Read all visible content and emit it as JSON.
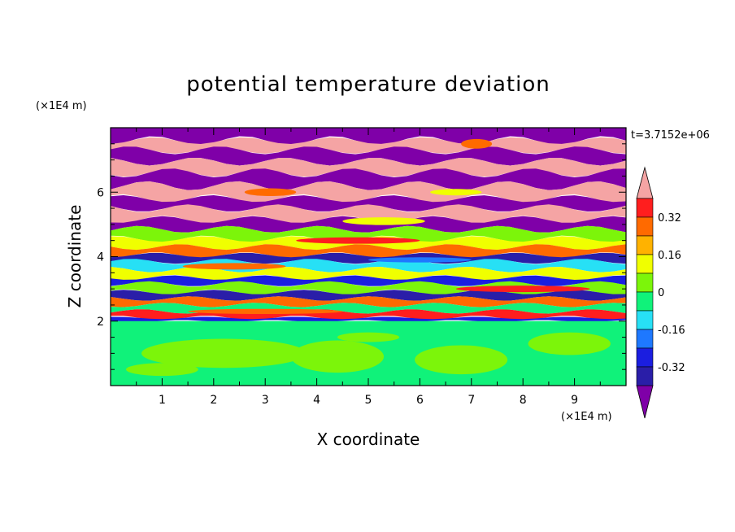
{
  "chart_data": {
    "type": "heatmap",
    "title": "potential temperature deviation",
    "xlabel": "X coordinate",
    "ylabel": "Z coordinate",
    "x_unit_label": "(×1E4 m)",
    "y_unit_label": "(×1E4 m)",
    "time_label": "t=3.7152e+06",
    "xlim": [
      0,
      10
    ],
    "ylim": [
      0,
      8
    ],
    "x_ticks": [
      "1",
      "2",
      "3",
      "4",
      "5",
      "6",
      "7",
      "8",
      "9"
    ],
    "y_ticks": [
      "2",
      "4",
      "6"
    ],
    "colorbar": {
      "levels": [
        -0.48,
        -0.4,
        -0.32,
        -0.24,
        -0.16,
        -0.08,
        0,
        0.08,
        0.16,
        0.24,
        0.32,
        0.4,
        0.48
      ],
      "colors": [
        "#7f00a8",
        "#2a1ea8",
        "#1b1ee0",
        "#1e78ff",
        "#27e0f5",
        "#10f27a",
        "#7cf50a",
        "#f0ff00",
        "#ffb200",
        "#ff6a00",
        "#ff1e1e",
        "#f5a4a4"
      ],
      "tick_labels": [
        "0.32",
        "0.16",
        "0",
        "-0.16",
        "-0.32"
      ],
      "tick_values": [
        0.32,
        0.16,
        0,
        -0.16,
        -0.32
      ]
    },
    "layers": [
      {
        "z_top": 8.0,
        "z_bottom": 7.6,
        "level": "#7f00a8"
      },
      {
        "z_top": 7.6,
        "z_bottom": 7.3,
        "level": "#f5a4a4"
      },
      {
        "z_top": 7.3,
        "z_bottom": 6.95,
        "level": "#7f00a8"
      },
      {
        "z_top": 6.95,
        "z_bottom": 6.6,
        "level": "#f5a4a4"
      },
      {
        "z_top": 6.6,
        "z_bottom": 6.2,
        "level": "#7f00a8"
      },
      {
        "z_top": 6.2,
        "z_bottom": 5.8,
        "level": "#f5a4a4"
      },
      {
        "z_top": 5.8,
        "z_bottom": 5.5,
        "level": "#7f00a8"
      },
      {
        "z_top": 5.5,
        "z_bottom": 5.15,
        "level": "#f5a4a4"
      },
      {
        "z_top": 5.15,
        "z_bottom": 4.85,
        "level": "#7f00a8"
      },
      {
        "z_top": 4.85,
        "z_bottom": 4.55,
        "level": "#7cf50a"
      },
      {
        "z_top": 4.55,
        "z_bottom": 4.3,
        "level": "#f0ff00"
      },
      {
        "z_top": 4.3,
        "z_bottom": 4.05,
        "level": "#ff6a00"
      },
      {
        "z_top": 4.05,
        "z_bottom": 3.85,
        "level": "#2a1ea8"
      },
      {
        "z_top": 3.85,
        "z_bottom": 3.6,
        "level": "#27e0f5"
      },
      {
        "z_top": 3.6,
        "z_bottom": 3.35,
        "level": "#f0ff00"
      },
      {
        "z_top": 3.35,
        "z_bottom": 3.15,
        "level": "#1b1ee0"
      },
      {
        "z_top": 3.15,
        "z_bottom": 2.9,
        "level": "#7cf50a"
      },
      {
        "z_top": 2.9,
        "z_bottom": 2.7,
        "level": "#2a1ea8"
      },
      {
        "z_top": 2.7,
        "z_bottom": 2.5,
        "level": "#ff6a00"
      },
      {
        "z_top": 2.5,
        "z_bottom": 2.3,
        "level": "#10f27a"
      },
      {
        "z_top": 2.3,
        "z_bottom": 2.1,
        "level": "#ff1e1e"
      },
      {
        "z_top": 2.1,
        "z_bottom": 2.0,
        "level": "#1b1ee0"
      },
      {
        "z_top": 2.0,
        "z_bottom": 0.0,
        "level": "#10f27a"
      }
    ],
    "blobs": [
      {
        "x": 2.2,
        "z": 1.0,
        "rx": 1.6,
        "rz": 0.45,
        "color": "#7cf50a"
      },
      {
        "x": 4.4,
        "z": 0.9,
        "rx": 0.9,
        "rz": 0.5,
        "color": "#7cf50a"
      },
      {
        "x": 6.8,
        "z": 0.8,
        "rx": 0.9,
        "rz": 0.45,
        "color": "#7cf50a"
      },
      {
        "x": 8.9,
        "z": 1.3,
        "rx": 0.8,
        "rz": 0.35,
        "color": "#7cf50a"
      },
      {
        "x": 1.0,
        "z": 0.5,
        "rx": 0.7,
        "rz": 0.2,
        "color": "#7cf50a"
      },
      {
        "x": 5.0,
        "z": 1.5,
        "rx": 0.6,
        "rz": 0.15,
        "color": "#7cf50a"
      },
      {
        "x": 3.1,
        "z": 6.0,
        "rx": 0.5,
        "rz": 0.12,
        "color": "#ff6a00"
      },
      {
        "x": 6.7,
        "z": 6.0,
        "rx": 0.5,
        "rz": 0.1,
        "color": "#f0ff00"
      },
      {
        "x": 5.3,
        "z": 5.1,
        "rx": 0.8,
        "rz": 0.12,
        "color": "#f0ff00"
      },
      {
        "x": 7.1,
        "z": 7.5,
        "rx": 0.3,
        "rz": 0.15,
        "color": "#ff6a00"
      },
      {
        "x": 4.8,
        "z": 4.5,
        "rx": 1.2,
        "rz": 0.1,
        "color": "#ff1e1e"
      },
      {
        "x": 2.4,
        "z": 3.7,
        "rx": 1.0,
        "rz": 0.1,
        "color": "#ff6a00"
      },
      {
        "x": 8.0,
        "z": 3.0,
        "rx": 1.3,
        "rz": 0.1,
        "color": "#ff1e1e"
      },
      {
        "x": 6.0,
        "z": 3.9,
        "rx": 1.0,
        "rz": 0.08,
        "color": "#1e78ff"
      },
      {
        "x": 3.0,
        "z": 2.3,
        "rx": 1.5,
        "rz": 0.08,
        "color": "#ff6a00"
      }
    ]
  }
}
